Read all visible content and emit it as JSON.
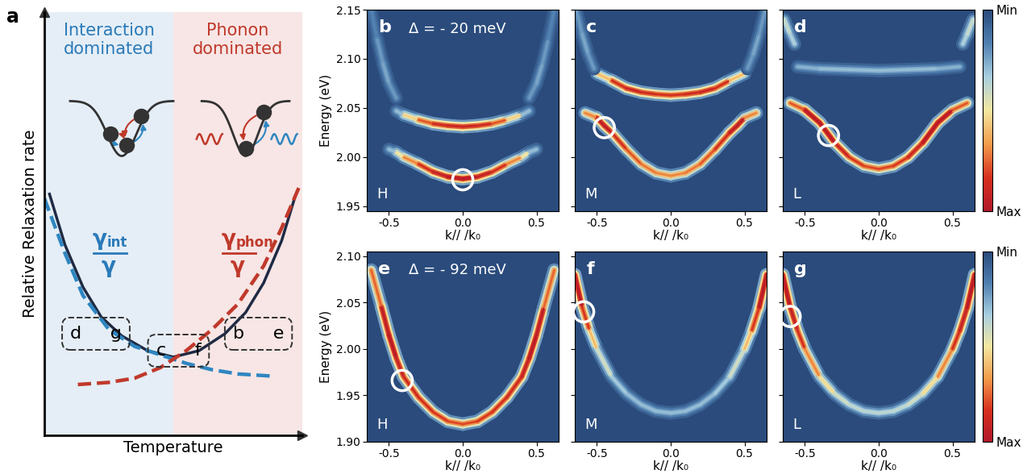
{
  "chart_data": [
    {
      "type": "line",
      "panel": "a",
      "xlabel": "Temperature",
      "ylabel": "Relative Relaxation rate",
      "xlim": [
        0,
        1
      ],
      "ylim": [
        0,
        1
      ],
      "tick_labels": false,
      "regions": [
        {
          "text": "Interaction\ndominated",
          "from": 0,
          "to": 0.5,
          "color": "#2a7ab9"
        },
        {
          "text": "Phonon\ndominated",
          "from": 0.5,
          "to": 1,
          "color": "#c0392b"
        }
      ],
      "series": [
        {
          "x": [
            0.02,
            0.08,
            0.15,
            0.22,
            0.3,
            0.4,
            0.5,
            0.6,
            0.7,
            0.78,
            0.85,
            0.92,
            0.97
          ],
          "values": [
            0.57,
            0.45,
            0.35,
            0.28,
            0.235,
            0.2,
            0.185,
            0.2,
            0.24,
            0.29,
            0.36,
            0.46,
            0.56
          ],
          "color": "#1f2a44",
          "line_style": "solid"
        },
        {
          "x": [
            0.0,
            0.08,
            0.15,
            0.25,
            0.35,
            0.45,
            0.55,
            0.65,
            0.75,
            0.88
          ],
          "values": [
            0.56,
            0.43,
            0.33,
            0.25,
            0.21,
            0.19,
            0.17,
            0.155,
            0.145,
            0.14
          ],
          "color": "#2e86c1",
          "line_style": "dashed"
        },
        {
          "x": [
            0.13,
            0.25,
            0.35,
            0.45,
            0.55,
            0.65,
            0.75,
            0.85,
            0.92,
            0.99
          ],
          "values": [
            0.12,
            0.125,
            0.135,
            0.16,
            0.2,
            0.25,
            0.31,
            0.4,
            0.49,
            0.59
          ],
          "color": "#c0392b",
          "line_style": "dashed"
        }
      ],
      "fractions": [
        {
          "symbol": "γ",
          "subscript": "int",
          "denominator": "γ",
          "x": 0.25,
          "y": 0.43,
          "color": "#2a7ab9"
        },
        {
          "symbol": "γ",
          "subscript": "phon",
          "denominator": "γ",
          "x": 0.75,
          "y": 0.43,
          "color": "#c0392b"
        }
      ],
      "boxes": [
        {
          "labels": [
            "d",
            "g"
          ],
          "x": 0.2,
          "y": 0.24
        },
        {
          "labels": [
            "c",
            "f"
          ],
          "x": 0.52,
          "y": 0.2
        },
        {
          "labels": [
            "b",
            "e"
          ],
          "x": 0.83,
          "y": 0.24
        }
      ]
    },
    {
      "type": "dispersion",
      "panel": "b",
      "state": "H",
      "annotation": "Δ = - 20 meV",
      "xlabel": "k// /k₀",
      "ylabel": "Energy (eV)",
      "xlim": [
        -0.65,
        0.65
      ],
      "ylim": [
        1.945,
        2.15
      ],
      "xticks": [
        -0.5,
        0.0,
        0.5
      ],
      "yticks": [
        1.95,
        {
          "value": 2.0,
          "label": "2.00"
        },
        2.05,
        {
          "value": 2.1,
          "label": "2.10"
        },
        2.15
      ],
      "bands": [
        {
          "k": [
            -0.5,
            -0.45,
            -0.4,
            -0.3,
            -0.2,
            -0.1,
            0,
            0.1,
            0.2,
            0.3,
            0.4,
            0.45,
            0.5
          ],
          "energy": [
            2.008,
            2.005,
            2.0,
            1.993,
            1.985,
            1.98,
            1.978,
            1.98,
            1.985,
            1.993,
            2.0,
            2.005,
            2.008
          ],
          "intensity": [
            0.2,
            0.4,
            0.6,
            0.8,
            0.9,
            0.95,
            1.0,
            0.95,
            0.9,
            0.8,
            0.6,
            0.4,
            0.2
          ]
        },
        {
          "k": [
            -0.45,
            -0.4,
            -0.3,
            -0.2,
            -0.1,
            0,
            0.1,
            0.2,
            0.3,
            0.4,
            0.45
          ],
          "energy": [
            2.047,
            2.043,
            2.038,
            2.034,
            2.032,
            2.031,
            2.032,
            2.034,
            2.038,
            2.043,
            2.047
          ],
          "intensity": [
            0.2,
            0.4,
            0.7,
            0.85,
            0.9,
            0.9,
            0.9,
            0.85,
            0.7,
            0.4,
            0.2
          ]
        },
        {
          "k": [
            -0.62,
            -0.58,
            -0.54,
            -0.5,
            -0.45
          ],
          "energy": [
            2.15,
            2.12,
            2.095,
            2.075,
            2.06
          ],
          "intensity": [
            0.15,
            0.2,
            0.25,
            0.25,
            0.2
          ]
        },
        {
          "k": [
            0.45,
            0.5,
            0.54,
            0.58,
            0.62
          ],
          "energy": [
            2.06,
            2.075,
            2.095,
            2.12,
            2.15
          ],
          "intensity": [
            0.2,
            0.25,
            0.25,
            0.2,
            0.15
          ]
        }
      ],
      "circle": {
        "k": 0.0,
        "energy": 1.977
      }
    },
    {
      "type": "dispersion",
      "panel": "c",
      "state": "M",
      "xlabel": "k// /k₀",
      "tick_labels": "x",
      "xlim": [
        -0.65,
        0.65
      ],
      "ylim": [
        1.945,
        2.15
      ],
      "xticks": [
        -0.5,
        0.0,
        0.5
      ],
      "yticks": [
        1.95,
        {
          "value": 2.0,
          "label": "2.00"
        },
        2.05,
        {
          "value": 2.1,
          "label": "2.10"
        },
        2.15
      ],
      "bands": [
        {
          "k": [
            -0.58,
            -0.5,
            -0.45,
            -0.4,
            -0.3,
            -0.2,
            -0.1,
            0,
            0.1,
            0.2,
            0.3,
            0.4,
            0.45,
            0.5,
            0.58
          ],
          "energy": [
            2.045,
            2.04,
            2.032,
            2.025,
            2.008,
            1.993,
            1.984,
            1.981,
            1.984,
            1.993,
            2.008,
            2.025,
            2.032,
            2.04,
            2.045
          ],
          "intensity": [
            0.5,
            0.9,
            1.0,
            0.9,
            0.8,
            0.75,
            0.7,
            0.7,
            0.7,
            0.75,
            0.8,
            0.9,
            1.0,
            0.9,
            0.5
          ]
        },
        {
          "k": [
            -0.5,
            -0.4,
            -0.3,
            -0.2,
            -0.1,
            0,
            0.1,
            0.2,
            0.3,
            0.4,
            0.5
          ],
          "energy": [
            2.085,
            2.078,
            2.07,
            2.066,
            2.064,
            2.063,
            2.064,
            2.066,
            2.07,
            2.078,
            2.085
          ],
          "intensity": [
            0.4,
            0.8,
            0.9,
            0.9,
            0.85,
            0.85,
            0.85,
            0.9,
            0.9,
            0.8,
            0.4
          ]
        },
        {
          "k": [
            -0.64,
            -0.6,
            -0.56,
            -0.52
          ],
          "energy": [
            2.15,
            2.125,
            2.105,
            2.09
          ],
          "intensity": [
            0.2,
            0.25,
            0.25,
            0.2
          ]
        },
        {
          "k": [
            0.52,
            0.56,
            0.6,
            0.64
          ],
          "energy": [
            2.09,
            2.105,
            2.125,
            2.15
          ],
          "intensity": [
            0.2,
            0.25,
            0.25,
            0.2
          ]
        }
      ],
      "circle": {
        "k": -0.45,
        "energy": 2.03
      }
    },
    {
      "type": "dispersion",
      "panel": "d",
      "state": "L",
      "xlabel": "k// /k₀",
      "tick_labels": "x",
      "xlim": [
        -0.65,
        0.65
      ],
      "ylim": [
        1.945,
        2.15
      ],
      "xticks": [
        -0.5,
        0.0,
        0.5
      ],
      "yticks": [
        1.95,
        {
          "value": 2.0,
          "label": "2.00"
        },
        2.05,
        {
          "value": 2.1,
          "label": "2.10"
        },
        2.15
      ],
      "bands": [
        {
          "k": [
            -0.6,
            -0.5,
            -0.4,
            -0.3,
            -0.2,
            -0.1,
            0,
            0.1,
            0.2,
            0.3,
            0.4,
            0.5,
            0.6
          ],
          "energy": [
            2.055,
            2.048,
            2.035,
            2.015,
            2.0,
            1.991,
            1.988,
            1.991,
            2.0,
            2.015,
            2.035,
            2.048,
            2.055
          ],
          "intensity": [
            0.6,
            0.95,
            1.0,
            0.95,
            0.85,
            0.8,
            0.8,
            0.8,
            0.85,
            0.95,
            1.0,
            0.95,
            0.6
          ]
        },
        {
          "k": [
            -0.55,
            -0.4,
            -0.2,
            0,
            0.2,
            0.4,
            0.55
          ],
          "energy": [
            2.092,
            2.09,
            2.089,
            2.088,
            2.089,
            2.09,
            2.092
          ],
          "intensity": [
            0.25,
            0.3,
            0.3,
            0.3,
            0.3,
            0.3,
            0.25
          ]
        },
        {
          "k": [
            -0.64,
            -0.6,
            -0.57
          ],
          "energy": [
            2.14,
            2.125,
            2.115
          ],
          "intensity": [
            0.4,
            0.4,
            0.3
          ]
        },
        {
          "k": [
            0.57,
            0.6,
            0.64
          ],
          "energy": [
            2.115,
            2.125,
            2.14
          ],
          "intensity": [
            0.3,
            0.4,
            0.4
          ]
        }
      ],
      "circle": {
        "k": -0.34,
        "energy": 2.022
      },
      "colorbar": {
        "range": [
          0,
          1
        ],
        "ticks": [
          {
            "value": 0,
            "label": "Min"
          },
          {
            "value": 1,
            "label": "Max"
          }
        ]
      }
    },
    {
      "type": "dispersion",
      "panel": "e",
      "state": "H",
      "annotation": "Δ = - 92 meV",
      "xlabel": "k// /k₀",
      "ylabel": "Energy (eV)",
      "xlim": [
        -0.65,
        0.65
      ],
      "ylim": [
        1.9,
        2.105
      ],
      "xticks": [
        -0.5,
        0.0,
        0.5
      ],
      "yticks": [
        {
          "value": 1.9,
          "label": "1.90"
        },
        1.95,
        {
          "value": 2.0,
          "label": "2.00"
        },
        2.05,
        {
          "value": 2.1,
          "label": "2.10"
        }
      ],
      "bands": [
        {
          "k": [
            -0.62,
            -0.55,
            -0.5,
            -0.45,
            -0.4,
            -0.3,
            -0.2,
            -0.1,
            0,
            0.1,
            0.2,
            0.3,
            0.4,
            0.45,
            0.5,
            0.55,
            0.62
          ],
          "energy": [
            2.085,
            2.045,
            2.015,
            1.99,
            1.97,
            1.948,
            1.932,
            1.922,
            1.919,
            1.922,
            1.932,
            1.948,
            1.97,
            1.99,
            2.015,
            2.045,
            2.085
          ],
          "intensity": [
            0.6,
            0.9,
            1.0,
            0.95,
            0.9,
            0.85,
            0.85,
            0.8,
            0.8,
            0.8,
            0.85,
            0.85,
            0.9,
            0.95,
            1.0,
            0.9,
            0.6
          ]
        }
      ],
      "circle": {
        "k": -0.41,
        "energy": 1.966
      }
    },
    {
      "type": "dispersion",
      "panel": "f",
      "state": "M",
      "xlabel": "k// /k₀",
      "tick_labels": "x",
      "xlim": [
        -0.65,
        0.65
      ],
      "ylim": [
        1.9,
        2.105
      ],
      "xticks": [
        -0.5,
        0.0,
        0.5
      ],
      "yticks": [
        {
          "value": 1.9,
          "label": "1.90"
        },
        1.95,
        {
          "value": 2.0,
          "label": "2.00"
        },
        2.05,
        {
          "value": 2.1,
          "label": "2.10"
        }
      ],
      "bands": [
        {
          "k": [
            -0.65,
            -0.6,
            -0.55,
            -0.5,
            -0.4,
            -0.3,
            -0.2,
            -0.1,
            0,
            0.1,
            0.2,
            0.3,
            0.4,
            0.5,
            0.55,
            0.6,
            0.65
          ],
          "energy": [
            2.08,
            2.045,
            2.02,
            2.0,
            1.97,
            1.952,
            1.94,
            1.933,
            1.931,
            1.933,
            1.94,
            1.952,
            1.97,
            2.0,
            2.02,
            2.045,
            2.08
          ],
          "intensity": [
            1.0,
            0.95,
            0.7,
            0.5,
            0.35,
            0.3,
            0.3,
            0.3,
            0.3,
            0.3,
            0.3,
            0.3,
            0.35,
            0.5,
            0.7,
            0.95,
            1.0
          ]
        }
      ],
      "circle": {
        "k": -0.59,
        "energy": 2.04
      }
    },
    {
      "type": "dispersion",
      "panel": "g",
      "state": "L",
      "xlabel": "k// /k₀",
      "tick_labels": "x",
      "xlim": [
        -0.65,
        0.65
      ],
      "ylim": [
        1.9,
        2.105
      ],
      "xticks": [
        -0.5,
        0.0,
        0.5
      ],
      "yticks": [
        {
          "value": 1.9,
          "label": "1.90"
        },
        1.95,
        {
          "value": 2.0,
          "label": "2.00"
        },
        2.05,
        {
          "value": 2.1,
          "label": "2.10"
        }
      ],
      "bands": [
        {
          "k": [
            -0.65,
            -0.6,
            -0.55,
            -0.5,
            -0.4,
            -0.3,
            -0.2,
            -0.1,
            0,
            0.1,
            0.2,
            0.3,
            0.4,
            0.5,
            0.55,
            0.6,
            0.65
          ],
          "energy": [
            2.08,
            2.045,
            2.02,
            2.0,
            1.97,
            1.952,
            1.94,
            1.933,
            1.931,
            1.933,
            1.94,
            1.952,
            1.97,
            2.0,
            2.02,
            2.045,
            2.08
          ],
          "intensity": [
            1.0,
            0.95,
            0.9,
            0.8,
            0.6,
            0.45,
            0.4,
            0.38,
            0.38,
            0.38,
            0.4,
            0.45,
            0.6,
            0.8,
            0.9,
            0.95,
            1.0
          ]
        }
      ],
      "circle": {
        "k": -0.6,
        "energy": 2.035
      },
      "colorbar": {
        "range": [
          0,
          1
        ],
        "ticks": [
          {
            "value": 0,
            "label": "Min"
          },
          {
            "value": 1,
            "label": "Max"
          }
        ]
      }
    }
  ]
}
